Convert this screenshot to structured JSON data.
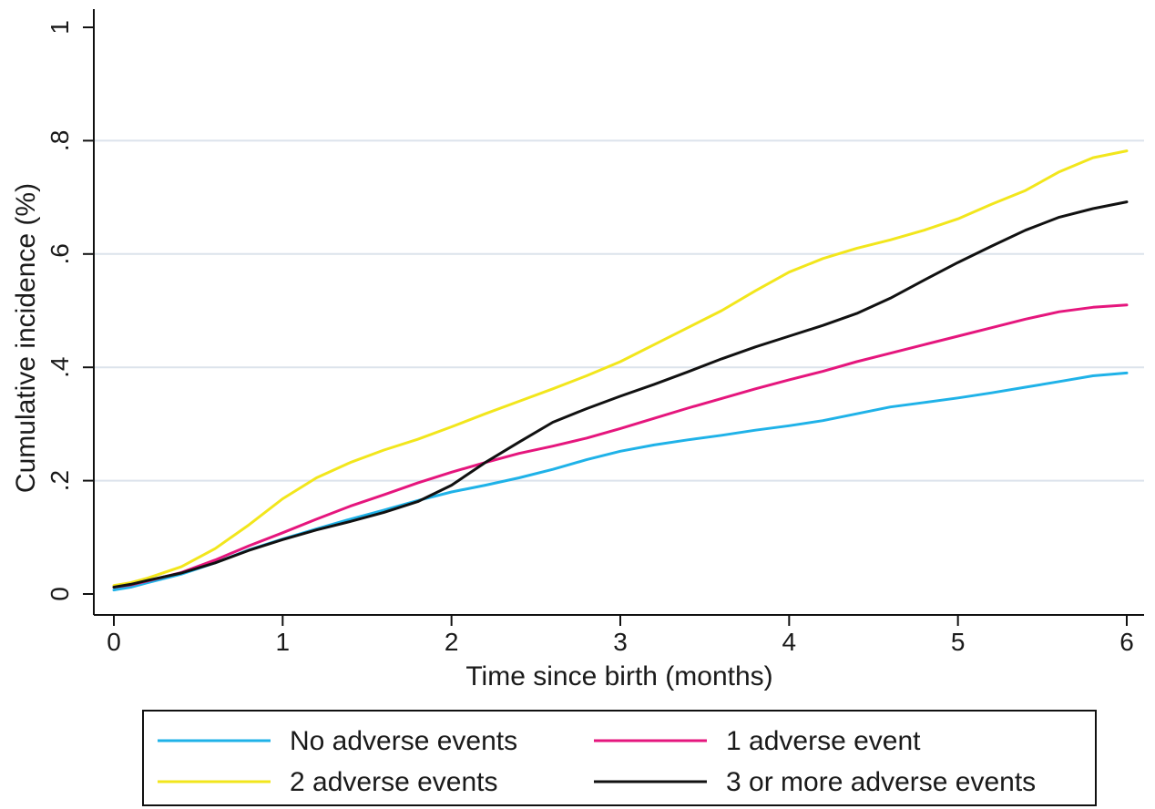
{
  "chart_data": {
    "type": "line",
    "title": "",
    "xlabel": "Time since birth (months)",
    "ylabel": "Cumulative incidence (%)",
    "xlim": [
      0,
      6
    ],
    "ylim": [
      0,
      1
    ],
    "x_ticks": [
      0,
      1,
      2,
      3,
      4,
      5,
      6
    ],
    "x_tick_labels": [
      "0",
      "1",
      "2",
      "3",
      "4",
      "5",
      "6"
    ],
    "y_ticks": [
      0,
      0.2,
      0.4,
      0.6,
      0.8,
      1
    ],
    "y_tick_labels": [
      "0",
      ".2",
      ".4",
      ".6",
      ".8",
      "1"
    ],
    "grid": "horizontal",
    "legend_position": "bottom",
    "series": [
      {
        "name": "No adverse events",
        "color": "#1fb2e8",
        "x": [
          0,
          0.1,
          0.2,
          0.4,
          0.6,
          0.8,
          1.0,
          1.2,
          1.4,
          1.6,
          1.8,
          2.0,
          2.2,
          2.4,
          2.6,
          2.8,
          3.0,
          3.2,
          3.4,
          3.6,
          3.8,
          4.0,
          4.2,
          4.4,
          4.6,
          4.8,
          5.0,
          5.2,
          5.4,
          5.6,
          5.8,
          6.0
        ],
        "y": [
          0.007,
          0.012,
          0.02,
          0.035,
          0.055,
          0.078,
          0.097,
          0.115,
          0.132,
          0.148,
          0.165,
          0.18,
          0.192,
          0.205,
          0.22,
          0.237,
          0.252,
          0.263,
          0.272,
          0.28,
          0.289,
          0.297,
          0.306,
          0.318,
          0.33,
          0.338,
          0.346,
          0.355,
          0.365,
          0.375,
          0.385,
          0.39
        ]
      },
      {
        "name": "1 adverse event",
        "color": "#e5167d",
        "x": [
          0,
          0.1,
          0.2,
          0.4,
          0.6,
          0.8,
          1.0,
          1.2,
          1.4,
          1.6,
          1.8,
          2.0,
          2.2,
          2.4,
          2.6,
          2.8,
          3.0,
          3.2,
          3.4,
          3.6,
          3.8,
          4.0,
          4.2,
          4.4,
          4.6,
          4.8,
          5.0,
          5.2,
          5.4,
          5.6,
          5.8,
          6.0
        ],
        "y": [
          0.012,
          0.016,
          0.023,
          0.038,
          0.06,
          0.085,
          0.108,
          0.132,
          0.155,
          0.175,
          0.196,
          0.215,
          0.232,
          0.248,
          0.261,
          0.275,
          0.292,
          0.31,
          0.328,
          0.345,
          0.362,
          0.378,
          0.393,
          0.41,
          0.425,
          0.44,
          0.455,
          0.47,
          0.485,
          0.498,
          0.506,
          0.51
        ]
      },
      {
        "name": "2 adverse events",
        "color": "#f2e61c",
        "x": [
          0,
          0.1,
          0.2,
          0.4,
          0.6,
          0.8,
          1.0,
          1.2,
          1.4,
          1.6,
          1.8,
          2.0,
          2.2,
          2.4,
          2.6,
          2.8,
          3.0,
          3.2,
          3.4,
          3.6,
          3.8,
          4.0,
          4.2,
          4.4,
          4.6,
          4.8,
          5.0,
          5.2,
          5.4,
          5.6,
          5.8,
          6.0
        ],
        "y": [
          0.015,
          0.02,
          0.028,
          0.048,
          0.08,
          0.122,
          0.168,
          0.205,
          0.232,
          0.254,
          0.273,
          0.295,
          0.318,
          0.34,
          0.362,
          0.385,
          0.41,
          0.44,
          0.47,
          0.5,
          0.535,
          0.568,
          0.592,
          0.61,
          0.625,
          0.642,
          0.662,
          0.688,
          0.712,
          0.745,
          0.77,
          0.782
        ]
      },
      {
        "name": "3 or more adverse events",
        "color": "#111111",
        "x": [
          0,
          0.1,
          0.2,
          0.4,
          0.6,
          0.8,
          1.0,
          1.2,
          1.4,
          1.6,
          1.8,
          2.0,
          2.2,
          2.4,
          2.6,
          2.8,
          3.0,
          3.2,
          3.4,
          3.6,
          3.8,
          4.0,
          4.2,
          4.4,
          4.6,
          4.8,
          5.0,
          5.2,
          5.4,
          5.6,
          5.8,
          6.0
        ],
        "y": [
          0.012,
          0.017,
          0.024,
          0.037,
          0.055,
          0.077,
          0.096,
          0.113,
          0.128,
          0.144,
          0.163,
          0.192,
          0.232,
          0.268,
          0.303,
          0.327,
          0.349,
          0.37,
          0.392,
          0.415,
          0.436,
          0.455,
          0.474,
          0.495,
          0.522,
          0.554,
          0.585,
          0.614,
          0.642,
          0.665,
          0.68,
          0.692
        ]
      }
    ]
  }
}
